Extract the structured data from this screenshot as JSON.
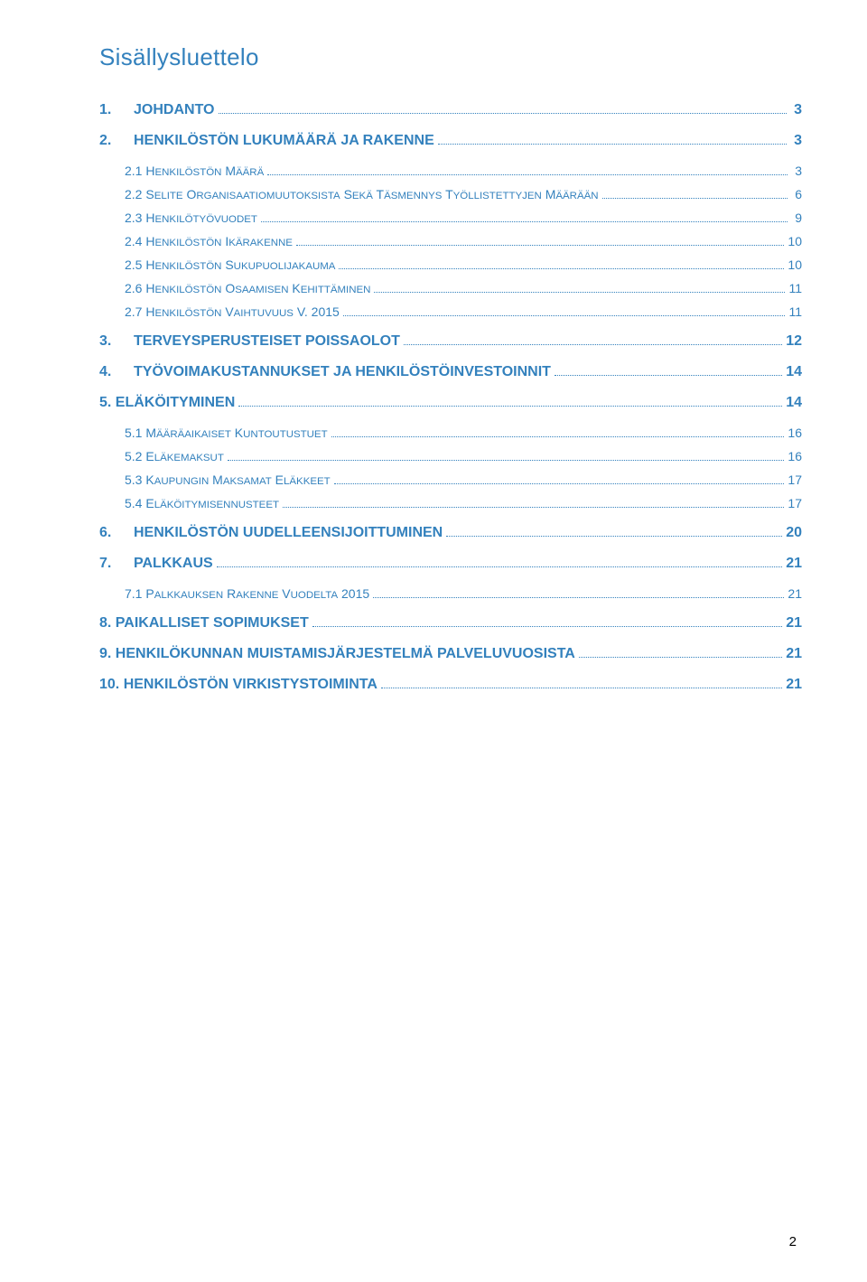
{
  "title": "Sisällysluettelo",
  "page_number": "2",
  "colors": {
    "link": "#3381bd",
    "text_black": "#000000",
    "background": "#ffffff"
  },
  "toc": [
    {
      "num": "1.",
      "label": "JOHDANTO",
      "page": " 3",
      "level": 0,
      "bold": true
    },
    {
      "num": "2.",
      "label": "HENKILÖSTÖN LUKUMÄÄRÄ JA RAKENNE",
      "page": " 3",
      "level": 0,
      "bold": true
    },
    {
      "num": "2.1 ",
      "label": "HENKILÖSTÖN MÄÄRÄ",
      "page": " 3",
      "level": 1,
      "bold": false,
      "smallcaps": true
    },
    {
      "num": "2.2 ",
      "label": "SELITE ORGANISAATIOMUUTOKSISTA SEKÄ TÄSMENNYS TYÖLLISTETTYJEN MÄÄRÄÄN",
      "page": " 6",
      "level": 1,
      "bold": false,
      "smallcaps": true
    },
    {
      "num": "2.3 ",
      "label": "HENKILÖTYÖVUODET",
      "page": " 9",
      "level": 1,
      "bold": false,
      "smallcaps": true
    },
    {
      "num": "2.4 ",
      "label": "HENKILÖSTÖN IKÄRAKENNE",
      "page": "10",
      "level": 1,
      "bold": false,
      "smallcaps": true
    },
    {
      "num": "2.5 ",
      "label": "HENKILÖSTÖN SUKUPUOLIJAKAUMA",
      "page": "10",
      "level": 1,
      "bold": false,
      "smallcaps": true
    },
    {
      "num": "2.6 ",
      "label": "HENKILÖSTÖN OSAAMISEN KEHITTÄMINEN",
      "page": "11",
      "level": 1,
      "bold": false,
      "smallcaps": true
    },
    {
      "num": "2.7 ",
      "label": "HENKILÖSTÖN VAIHTUVUUS V. 2015",
      "page": "11",
      "level": 1,
      "bold": false,
      "smallcaps": true
    },
    {
      "num": "3.",
      "label": "TERVEYSPERUSTEISET POISSAOLOT",
      "page": "12",
      "level": 0,
      "bold": true
    },
    {
      "num": "4.",
      "label": "TYÖVOIMAKUSTANNUKSET JA HENKILÖSTÖINVESTOINNIT",
      "page": "14",
      "level": 0,
      "bold": true
    },
    {
      "num": "5. ",
      "label": "ELÄKÖITYMINEN",
      "page": "14",
      "level": 0,
      "bold": true,
      "nogap": true
    },
    {
      "num": "5.1 ",
      "label": "MÄÄRÄAIKAISET KUNTOUTUSTUET",
      "page": "16",
      "level": 1,
      "bold": false,
      "smallcaps": true
    },
    {
      "num": "5.2 ",
      "label": "ELÄKEMAKSUT",
      "page": "16",
      "level": 1,
      "bold": false,
      "smallcaps": true
    },
    {
      "num": "5.3 ",
      "label": "KAUPUNGIN MAKSAMAT ELÄKKEET",
      "page": "17",
      "level": 1,
      "bold": false,
      "smallcaps": true
    },
    {
      "num": "5.4 ",
      "label": "ELÄKÖITYMISENNUSTEET",
      "page": "17",
      "level": 1,
      "bold": false,
      "smallcaps": true
    },
    {
      "num": "6.",
      "label": "HENKILÖSTÖN UUDELLEENSIJOITTUMINEN",
      "page": "20",
      "level": 0,
      "bold": true
    },
    {
      "num": "7.",
      "label": "PALKKAUS",
      "page": "21",
      "level": 0,
      "bold": true
    },
    {
      "num": "7.1 ",
      "label": "PALKKAUKSEN RAKENNE VUODELTA 2015",
      "page": "21",
      "level": 1,
      "bold": false,
      "smallcaps": true
    },
    {
      "num": "8. ",
      "label": "PAIKALLISET SOPIMUKSET",
      "page": "21",
      "level": 0,
      "bold": true,
      "nogap": true
    },
    {
      "num": "9. ",
      "label": "HENKILÖKUNNAN MUISTAMISJÄRJESTELMÄ PALVELUVUOSISTA",
      "page": "21",
      "level": 0,
      "bold": true,
      "nogap": true
    },
    {
      "num": "10. ",
      "label": "HENKILÖSTÖN VIRKISTYSTOIMINTA",
      "page": "21",
      "level": 0,
      "bold": true,
      "nogap": true
    }
  ]
}
